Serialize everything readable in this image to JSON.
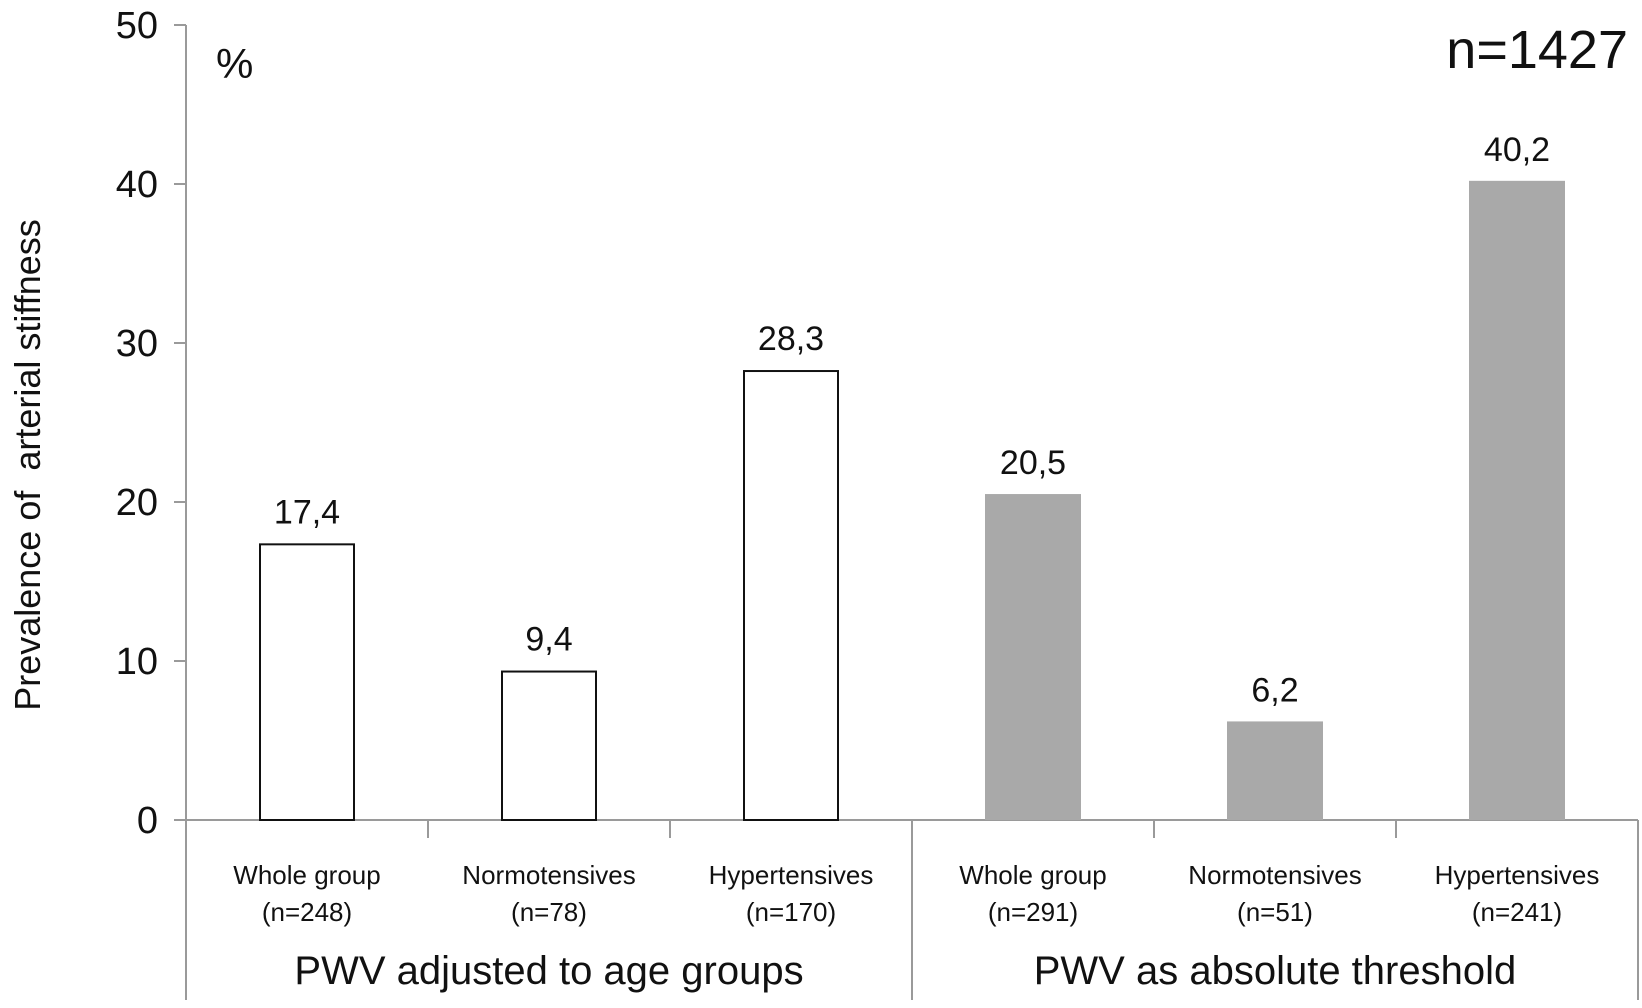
{
  "chart_data": {
    "type": "bar",
    "ylabel": "Prevalence of  arterial stiffness",
    "unit": "%",
    "annotation": "n=1427",
    "ylim": [
      0,
      50
    ],
    "yticks": [
      0,
      10,
      20,
      30,
      40,
      50
    ],
    "grid": false,
    "categories": [
      {
        "line1": "Whole group",
        "line2": "(n=248)",
        "group": 0,
        "value": 17.4,
        "label": "17,4",
        "style": "outline"
      },
      {
        "line1": "Normotensives",
        "line2": "(n=78)",
        "group": 0,
        "value": 9.4,
        "label": "9,4",
        "style": "outline"
      },
      {
        "line1": "Hypertensives",
        "line2": "(n=170)",
        "group": 0,
        "value": 28.3,
        "label": "28,3",
        "style": "outline"
      },
      {
        "line1": "Whole group",
        "line2": "(n=291)",
        "group": 1,
        "value": 20.5,
        "label": "20,5",
        "style": "filled"
      },
      {
        "line1": "Normotensives",
        "line2": "(n=51)",
        "group": 1,
        "value": 6.2,
        "label": "6,2",
        "style": "filled"
      },
      {
        "line1": "Hypertensives",
        "line2": "(n=241)",
        "group": 1,
        "value": 40.2,
        "label": "40,2",
        "style": "filled"
      }
    ],
    "groups": [
      "PWV adjusted to age groups",
      "PWV as absolute threshold"
    ],
    "colors": {
      "filled": "#a9a9a9",
      "outline_fill": "#ffffff",
      "outline_stroke": "#111111",
      "axis": "#9a9a9a"
    }
  }
}
